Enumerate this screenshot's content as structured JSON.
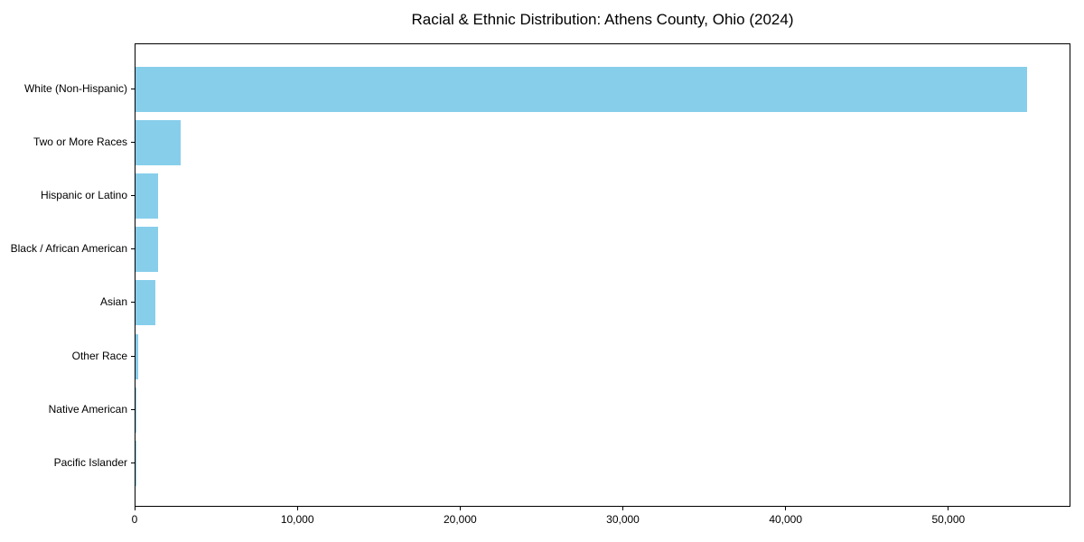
{
  "chart_data": {
    "type": "bar",
    "orientation": "horizontal",
    "title": "Racial & Ethnic Distribution: Athens County, Ohio (2024)",
    "categories": [
      "White (Non-Hispanic)",
      "Two or More Races",
      "Hispanic or Latino",
      "Black / African American",
      "Asian",
      "Other Race",
      "Native American",
      "Pacific Islander"
    ],
    "values": [
      54800,
      2800,
      1400,
      1360,
      1200,
      140,
      40,
      15
    ],
    "xlabel": "",
    "ylabel": "",
    "xlim": [
      0,
      57500
    ],
    "xticks": [
      0,
      10000,
      20000,
      30000,
      40000,
      50000
    ],
    "xtick_labels": [
      "0",
      "10,000",
      "20,000",
      "30,000",
      "40,000",
      "50,000"
    ],
    "grid": false,
    "legend": "none",
    "bar_color": "#87CEEB",
    "axis_color": "#000000",
    "text_color": "#000000",
    "background_color": "#FFFFFF"
  }
}
